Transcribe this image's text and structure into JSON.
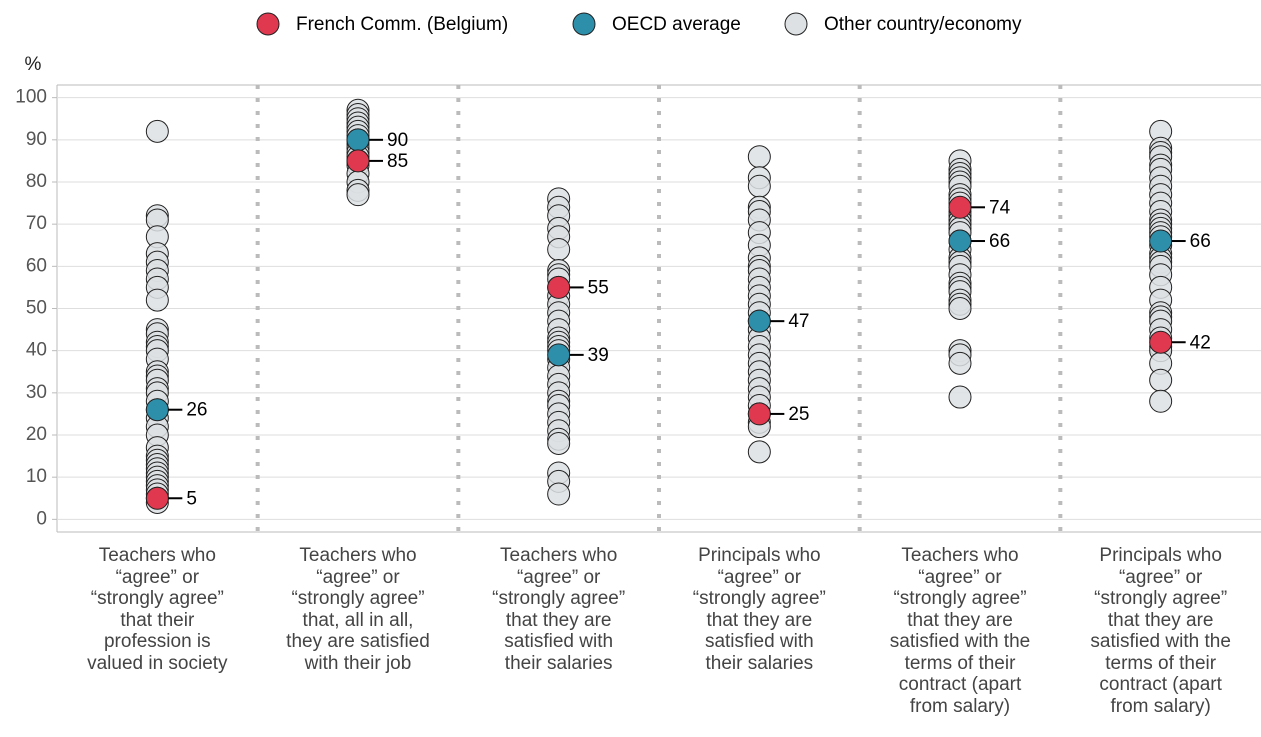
{
  "chart_data": {
    "type": "dot",
    "ylabel": "%",
    "categories": [
      "Teachers who\n“agree” or\n“strongly agree”\nthat their\nprofession is\nvalued in society",
      "Teachers who\n“agree” or\n“strongly agree”\nthat, all in all,\nthey are satisfied\nwith their job",
      "Teachers who\n“agree” or\n“strongly agree”\nthat they are\nsatisfied with\ntheir salaries",
      "Principals who\n“agree” or\n“strongly agree”\nthat they are\nsatisfied with\ntheir salaries",
      "Teachers who\n“agree” or\n“strongly agree”\nthat they are\nsatisfied with the\nterms of their\ncontract (apart\nfrom salary)",
      "Principals who\n“agree” or\n“strongly agree”\nthat they are\nsatisfied with the\nterms of their\ncontract (apart\nfrom salary)"
    ],
    "series": [
      {
        "name": "French Comm. (Belgium)",
        "color": "#e0394f",
        "values": [
          5,
          85,
          55,
          25,
          74,
          42
        ],
        "labeled": true
      },
      {
        "name": "OECD average",
        "color": "#2e8fab",
        "values": [
          26,
          90,
          39,
          47,
          66,
          66
        ],
        "labeled": true
      },
      {
        "name": "Other country/economy",
        "color": "#dde1e3",
        "values": [
          [
            92,
            72,
            71,
            67,
            63,
            61,
            59,
            57,
            55,
            52,
            45,
            44,
            42,
            41,
            40,
            38,
            35,
            34,
            33,
            31,
            30,
            28,
            26,
            24,
            22,
            20,
            17,
            15,
            14,
            13,
            12,
            11,
            10,
            9,
            8,
            7,
            6,
            5,
            4
          ],
          [
            97,
            96,
            95,
            94,
            93,
            92,
            91,
            90,
            89,
            88,
            87,
            86,
            85,
            84,
            82,
            80,
            78,
            77
          ],
          [
            76,
            74,
            72,
            69,
            67,
            64,
            59,
            58,
            57,
            55,
            53,
            51,
            49,
            47,
            45,
            43,
            42,
            41,
            40,
            38,
            36,
            34,
            32,
            30,
            28,
            27,
            25,
            23,
            21,
            19,
            18,
            11,
            9,
            6
          ],
          [
            86,
            81,
            79,
            74,
            73,
            71,
            68,
            65,
            62,
            60,
            59,
            57,
            55,
            53,
            51,
            49,
            47,
            45,
            43,
            41,
            39,
            37,
            35,
            33,
            31,
            29,
            27,
            25,
            23,
            22,
            16
          ],
          [
            85,
            83,
            82,
            81,
            80,
            79,
            77,
            76,
            75,
            73,
            72,
            71,
            70,
            69,
            68,
            66,
            64,
            62,
            61,
            60,
            58,
            56,
            55,
            54,
            52,
            51,
            50,
            40,
            39,
            37,
            29
          ],
          [
            92,
            88,
            87,
            86,
            84,
            83,
            81,
            79,
            77,
            75,
            73,
            71,
            70,
            69,
            68,
            67,
            65,
            63,
            62,
            61,
            60,
            58,
            55,
            52,
            49,
            48,
            47,
            45,
            43,
            41,
            40,
            37,
            33,
            28
          ]
        ]
      }
    ],
    "ylim": [
      -3,
      103
    ],
    "yticks": [
      0,
      10,
      20,
      30,
      40,
      50,
      60,
      70,
      80,
      90,
      100
    ],
    "grid": true,
    "legend": "top"
  }
}
